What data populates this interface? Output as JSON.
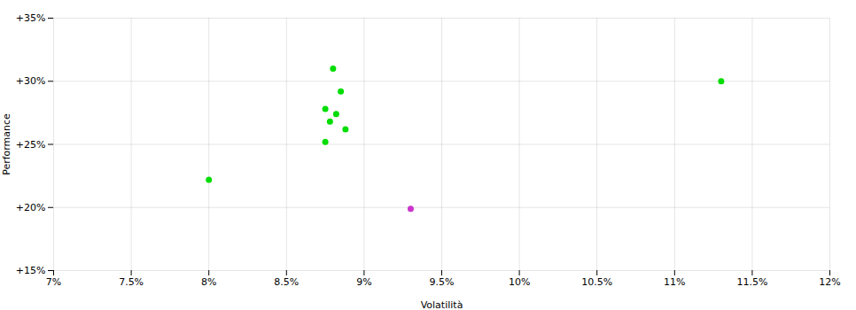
{
  "chart_data": {
    "type": "scatter",
    "xlabel": "Volatilità",
    "ylabel": "Performance",
    "xlim": [
      0.07,
      0.12
    ],
    "ylim": [
      0.15,
      0.35
    ],
    "xticks": [
      {
        "value": 0.07,
        "label": "7%"
      },
      {
        "value": 0.075,
        "label": "7.5%"
      },
      {
        "value": 0.08,
        "label": "8%"
      },
      {
        "value": 0.085,
        "label": "8.5%"
      },
      {
        "value": 0.09,
        "label": "9%"
      },
      {
        "value": 0.095,
        "label": "9.5%"
      },
      {
        "value": 0.1,
        "label": "10%"
      },
      {
        "value": 0.105,
        "label": "10.5%"
      },
      {
        "value": 0.11,
        "label": "11%"
      },
      {
        "value": 0.115,
        "label": "11.5%"
      },
      {
        "value": 0.12,
        "label": "12%"
      }
    ],
    "yticks": [
      {
        "value": 0.15,
        "label": "+15%"
      },
      {
        "value": 0.2,
        "label": "+20%"
      },
      {
        "value": 0.25,
        "label": "+25%"
      },
      {
        "value": 0.3,
        "label": "+30%"
      },
      {
        "value": 0.35,
        "label": "+35%"
      }
    ],
    "grid": true,
    "series": [
      {
        "color": "#00dd00",
        "x": [
          0.088,
          0.0885,
          0.0875,
          0.0882,
          0.0878,
          0.0888,
          0.0875,
          0.08,
          0.113
        ],
        "values": [
          0.31,
          0.292,
          0.278,
          0.274,
          0.268,
          0.262,
          0.252,
          0.222,
          0.3
        ]
      },
      {
        "color": "#cc33cc",
        "x": [
          0.093
        ],
        "values": [
          0.199
        ]
      }
    ]
  }
}
